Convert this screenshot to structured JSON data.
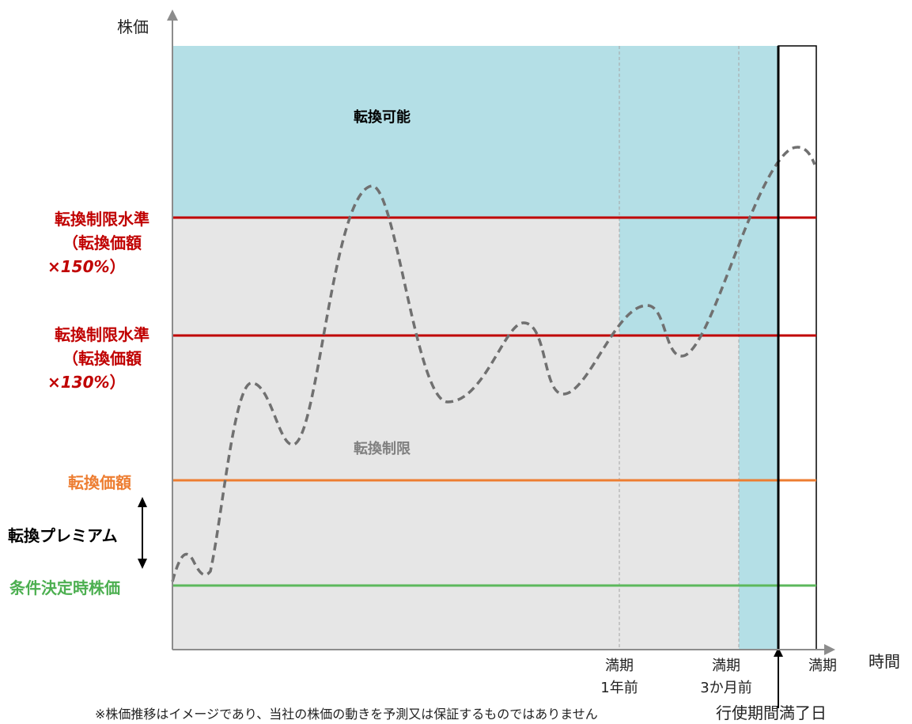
{
  "axes": {
    "y_label": "株価",
    "x_label": "時間"
  },
  "zones": {
    "convertible": "転換可能",
    "restricted": "転換制限"
  },
  "levels": {
    "limit_150": {
      "line1": "転換制限水準",
      "line2": "（転換価額",
      "line3_prefix": "×",
      "line3_value": "150%",
      "line3_suffix": "）"
    },
    "limit_130": {
      "line1": "転換制限水準",
      "line2": "（転換価額",
      "line3_prefix": "×",
      "line3_value": "130%",
      "line3_suffix": "）"
    },
    "conversion_price": "転換価額",
    "initial_price": "条件決定時株価"
  },
  "premium_label": "転換プレミアム",
  "x_ticks": {
    "one_year": {
      "line1": "満期",
      "line2": "1年前"
    },
    "three_months": {
      "line1": "満期",
      "line2": "3か月前"
    },
    "maturity": "満期"
  },
  "exercise_end": "行使期間満了日",
  "note": "※株価推移はイメージであり、当社の株価の動きを予測又は保証するものではありません",
  "colors": {
    "convertible_bg": "#b4dfe6",
    "restricted_bg": "#e6e6e6",
    "limit_line": "#c00000",
    "conversion_line": "#ed7d31",
    "initial_line": "#5cb85c",
    "price_curve": "#707070"
  }
}
